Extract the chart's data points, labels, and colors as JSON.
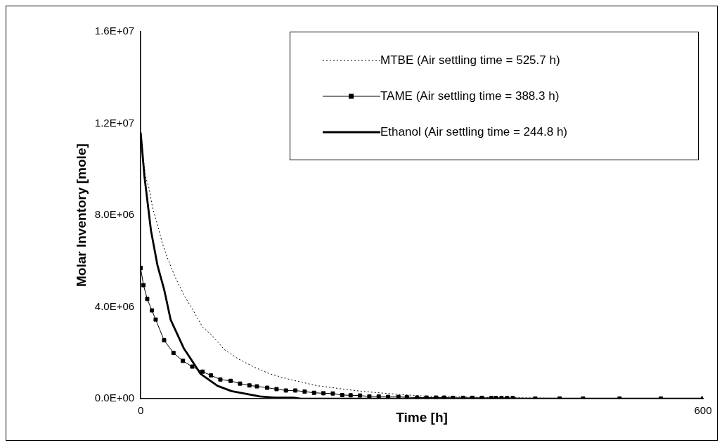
{
  "chart_data": {
    "type": "line",
    "xlabel": "Time [h]",
    "ylabel": "Molar Inventory [mole]",
    "xlim": [
      0,
      600
    ],
    "xticks": [
      0,
      600
    ],
    "ylim": [
      0,
      16000000
    ],
    "yticks": [
      {
        "value": 0,
        "label": "0.0E+00"
      },
      {
        "value": 4000000,
        "label": "4.0E+06"
      },
      {
        "value": 8000000,
        "label": "8.0E+06"
      },
      {
        "value": 12000000,
        "label": "1.2E+07"
      },
      {
        "value": 16000000,
        "label": "1.6E+07"
      }
    ],
    "grid": false,
    "legend": "top right",
    "series": [
      {
        "name": "MTBE (Air settling time = 525.7 h)",
        "color": "#000000",
        "line_style": "dotted",
        "marker": "none",
        "x": [
          0,
          5,
          9,
          12.5,
          17.6,
          23.5,
          28,
          37,
          47,
          56,
          66,
          76,
          89,
          104,
          121,
          138,
          161,
          188,
          207,
          226,
          245,
          273,
          305,
          346,
          401,
          456,
          568,
          600
        ],
        "values": [
          11500000,
          9700000,
          9180000,
          8360000,
          7640000,
          6720000,
          6200000,
          5280000,
          4460000,
          3850000,
          3130000,
          2770000,
          2150000,
          1740000,
          1380000,
          1080000,
          820000,
          570000,
          470000,
          370000,
          290000,
          200000,
          110000,
          70000,
          40000,
          20000,
          10000,
          0
        ]
      },
      {
        "name": "TAME (Air settling time = 388.3 h)",
        "color": "#000000",
        "line_style": "solid",
        "marker": "square",
        "x": [
          0,
          3,
          7,
          12,
          16,
          25,
          35,
          45,
          55,
          66,
          75,
          85,
          96,
          106,
          116,
          124,
          135,
          145,
          155,
          165,
          175,
          185,
          195,
          205,
          215,
          224,
          234,
          244,
          254,
          264,
          275,
          284,
          295,
          305,
          315,
          324,
          333,
          344,
          354,
          364,
          374,
          379,
          385,
          391,
          397,
          421,
          447,
          472,
          511,
          555,
          600
        ],
        "values": [
          5700000,
          4950000,
          4350000,
          3850000,
          3450000,
          2550000,
          2000000,
          1650000,
          1400000,
          1180000,
          1020000,
          840000,
          780000,
          660000,
          580000,
          540000,
          480000,
          420000,
          360000,
          360000,
          310000,
          260000,
          240000,
          230000,
          160000,
          150000,
          140000,
          100000,
          100000,
          80000,
          80000,
          70000,
          50000,
          50000,
          50000,
          50000,
          40000,
          40000,
          40000,
          40000,
          30000,
          30000,
          30000,
          30000,
          30000,
          10000,
          10000,
          10000,
          10000,
          10000,
          10000
        ]
      },
      {
        "name": "Ethanol (Air settling time = 244.8 h)",
        "color": "#000000",
        "line_style": "solid",
        "marker": "none",
        "x": [
          0,
          4,
          11,
          18,
          25,
          32,
          46,
          64,
          82,
          97,
          127,
          143,
          163,
          171,
          300,
          600
        ],
        "values": [
          11600000,
          9700000,
          7330000,
          5800000,
          4770000,
          3440000,
          2200000,
          1080000,
          560000,
          330000,
          100000,
          50000,
          50000,
          0,
          0,
          0
        ]
      }
    ]
  }
}
